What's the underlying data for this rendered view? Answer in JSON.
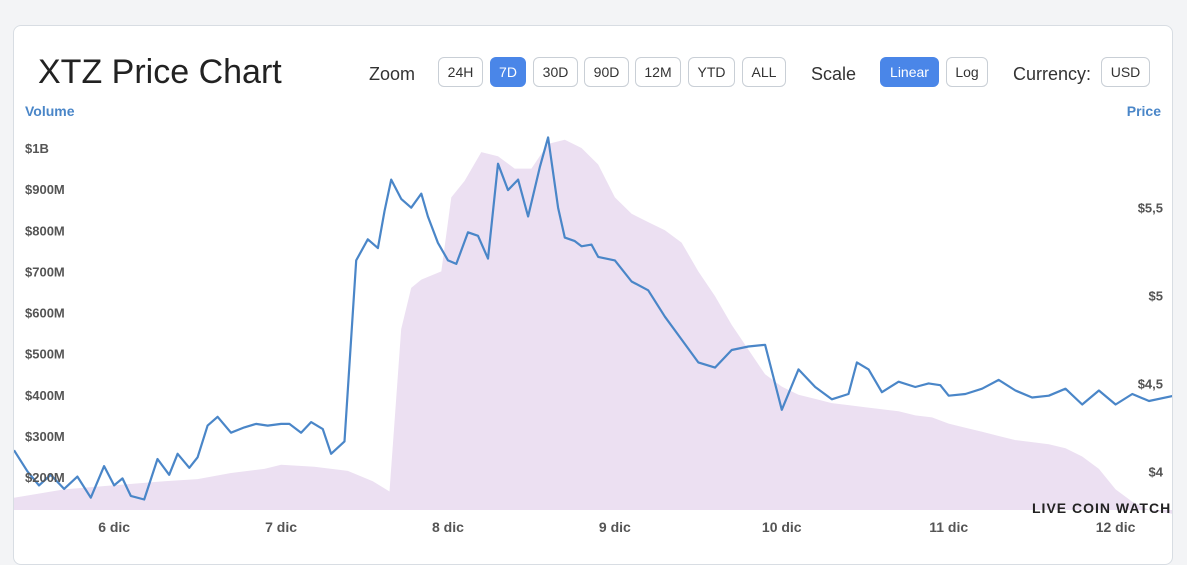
{
  "header": {
    "title": "XTZ Price Chart",
    "zoom_label": "Zoom",
    "zoom_options": [
      "24H",
      "7D",
      "30D",
      "90D",
      "12M",
      "YTD",
      "ALL"
    ],
    "zoom_selected": "7D",
    "scale_label": "Scale",
    "scale_options": [
      "Linear",
      "Log"
    ],
    "scale_selected": "Linear",
    "currency_label": "Currency:",
    "currency_value": "USD"
  },
  "watermark": "LIVE COIN WATCH",
  "colors": {
    "price_line": "#4a86c8",
    "volume_fill": "#ece0f2",
    "accent": "#4a86e8"
  },
  "chart_data": {
    "type": "line",
    "title": "XTZ Price Chart",
    "x_tick_labels": [
      "6 dic",
      "7 dic",
      "8 dic",
      "9 dic",
      "10 dic",
      "11 dic",
      "12 dic"
    ],
    "x_domain_days": [
      5.4,
      12.35
    ],
    "y_left": {
      "label": "Volume",
      "ticks": [
        200,
        300,
        400,
        500,
        600,
        700,
        800,
        900,
        1000
      ],
      "tick_labels": [
        "$200M",
        "$300M",
        "$400M",
        "$500M",
        "$600M",
        "$700M",
        "$800M",
        "$900M",
        "$1B"
      ],
      "range": [
        120,
        1090
      ]
    },
    "y_right": {
      "label": "Price",
      "ticks": [
        4,
        4.5,
        5,
        5.5
      ],
      "tick_labels": [
        "$4",
        "$4,5",
        "$5",
        "$5,5"
      ],
      "range": [
        3.78,
        6.05
      ]
    },
    "legend": "none",
    "grid": false,
    "series": [
      {
        "axis": "right",
        "x": [
          5.4,
          5.48,
          5.55,
          5.62,
          5.7,
          5.78,
          5.86,
          5.94,
          6.0,
          6.05,
          6.1,
          6.18,
          6.26,
          6.33,
          6.38,
          6.45,
          6.5,
          6.56,
          6.62,
          6.7,
          6.78,
          6.85,
          6.92,
          7.0,
          7.05,
          7.12,
          7.18,
          7.25,
          7.3,
          7.38,
          7.45,
          7.52,
          7.58,
          7.62,
          7.66,
          7.72,
          7.78,
          7.84,
          7.88,
          7.94,
          8.0,
          8.05,
          8.12,
          8.18,
          8.24,
          8.3,
          8.36,
          8.42,
          8.48,
          8.55,
          8.6,
          8.66,
          8.7,
          8.76,
          8.8,
          8.86,
          8.9,
          9.0,
          9.1,
          9.2,
          9.3,
          9.4,
          9.5,
          9.6,
          9.7,
          9.8,
          9.9,
          10.0,
          10.1,
          10.2,
          10.3,
          10.4,
          10.45,
          10.52,
          10.6,
          10.7,
          10.8,
          10.88,
          10.95,
          11.0,
          11.1,
          11.2,
          11.3,
          11.4,
          11.5,
          11.6,
          11.7,
          11.8,
          11.9,
          12.0,
          12.1,
          12.2,
          12.35
        ],
        "y": [
          4.12,
          4.0,
          3.92,
          3.98,
          3.9,
          3.97,
          3.85,
          4.03,
          3.92,
          3.96,
          3.86,
          3.84,
          4.07,
          3.98,
          4.1,
          4.02,
          4.08,
          4.26,
          4.31,
          4.22,
          4.25,
          4.27,
          4.26,
          4.27,
          4.27,
          4.22,
          4.28,
          4.24,
          4.1,
          4.17,
          5.2,
          5.32,
          5.27,
          5.48,
          5.66,
          5.55,
          5.5,
          5.58,
          5.45,
          5.3,
          5.2,
          5.18,
          5.36,
          5.34,
          5.21,
          5.75,
          5.6,
          5.66,
          5.45,
          5.73,
          5.9,
          5.5,
          5.33,
          5.31,
          5.28,
          5.29,
          5.22,
          5.2,
          5.08,
          5.03,
          4.88,
          4.75,
          4.62,
          4.59,
          4.69,
          4.71,
          4.72,
          4.35,
          4.58,
          4.48,
          4.41,
          4.44,
          4.62,
          4.58,
          4.45,
          4.51,
          4.48,
          4.5,
          4.49,
          4.43,
          4.44,
          4.47,
          4.52,
          4.46,
          4.42,
          4.43,
          4.47,
          4.38,
          4.46,
          4.38,
          4.44,
          4.4,
          4.43
        ]
      },
      {
        "axis": "left",
        "x": [
          5.4,
          5.7,
          6.0,
          6.3,
          6.5,
          6.7,
          6.9,
          7.0,
          7.2,
          7.4,
          7.55,
          7.65,
          7.72,
          7.78,
          7.84,
          7.9,
          7.96,
          8.02,
          8.1,
          8.2,
          8.3,
          8.4,
          8.5,
          8.6,
          8.7,
          8.8,
          8.9,
          9.0,
          9.1,
          9.2,
          9.3,
          9.4,
          9.5,
          9.6,
          9.7,
          9.8,
          9.9,
          10.0,
          10.1,
          10.2,
          10.3,
          10.4,
          10.5,
          10.6,
          10.7,
          10.8,
          10.9,
          11.0,
          11.1,
          11.2,
          11.3,
          11.4,
          11.5,
          11.6,
          11.7,
          11.8,
          11.9,
          12.0,
          12.1,
          12.2,
          12.35
        ],
        "y": [
          150,
          170,
          180,
          190,
          195,
          210,
          220,
          230,
          225,
          215,
          190,
          165,
          560,
          660,
          680,
          690,
          700,
          880,
          920,
          990,
          980,
          950,
          950,
          1010,
          1020,
          1000,
          960,
          880,
          840,
          820,
          800,
          770,
          700,
          640,
          570,
          510,
          450,
          420,
          400,
          390,
          380,
          375,
          370,
          365,
          360,
          350,
          345,
          330,
          320,
          310,
          300,
          290,
          285,
          280,
          270,
          250,
          220,
          170,
          140,
          120,
          110
        ]
      }
    ]
  }
}
